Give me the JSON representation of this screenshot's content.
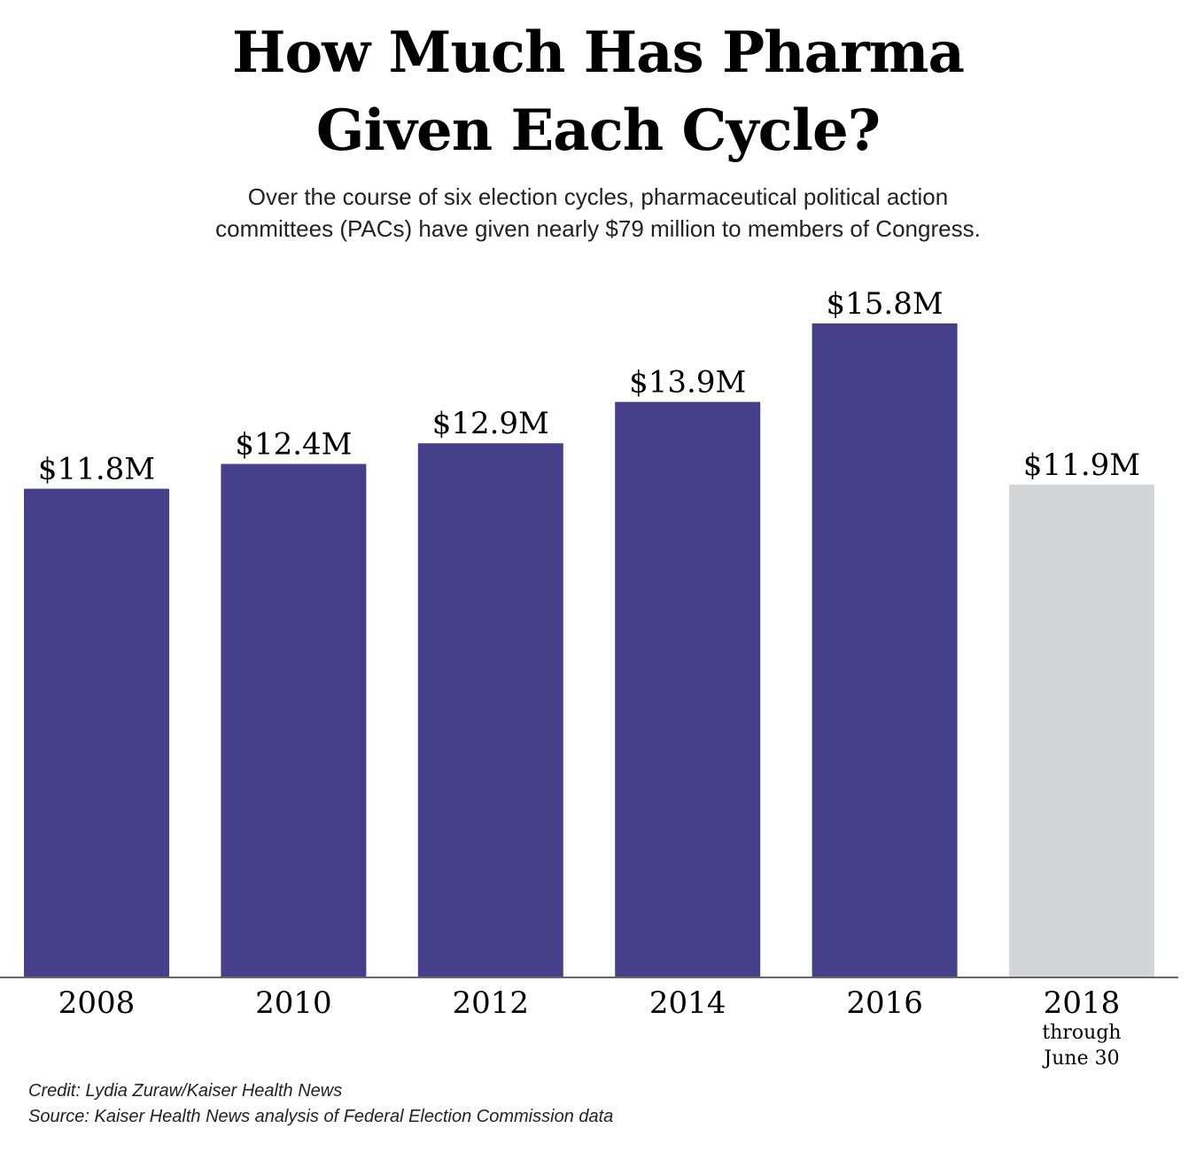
{
  "chart_data": {
    "type": "bar",
    "title_lines": [
      "How Much Has Pharma",
      "Given Each Cycle?"
    ],
    "subtitle_lines": [
      "Over the course of six election cycles, pharmaceutical political action",
      "committees (PACs) have given nearly $79 million to members of Congress."
    ],
    "categories": [
      "2008",
      "2010",
      "2012",
      "2014",
      "2016",
      "2018"
    ],
    "category_notes": [
      "",
      "",
      "",
      "",
      "",
      "through June 30"
    ],
    "category_note_lines": [
      "through",
      "June 30"
    ],
    "values": [
      11.8,
      12.4,
      12.9,
      13.9,
      15.8,
      11.9
    ],
    "value_labels": [
      "$11.8M",
      "$12.4M",
      "$12.9M",
      "$13.9M",
      "$15.8M",
      "$11.9M"
    ],
    "units": "millions of dollars",
    "ylim": [
      0,
      16
    ],
    "grid": false,
    "colors": {
      "complete": "#463f8a",
      "partial": "#d3d6d9",
      "axis": "#666666"
    }
  },
  "footer": {
    "credit": "Credit: Lydia Zuraw/Kaiser Health News",
    "source": "Source: Kaiser Health News analysis of Federal Election Commission data"
  }
}
